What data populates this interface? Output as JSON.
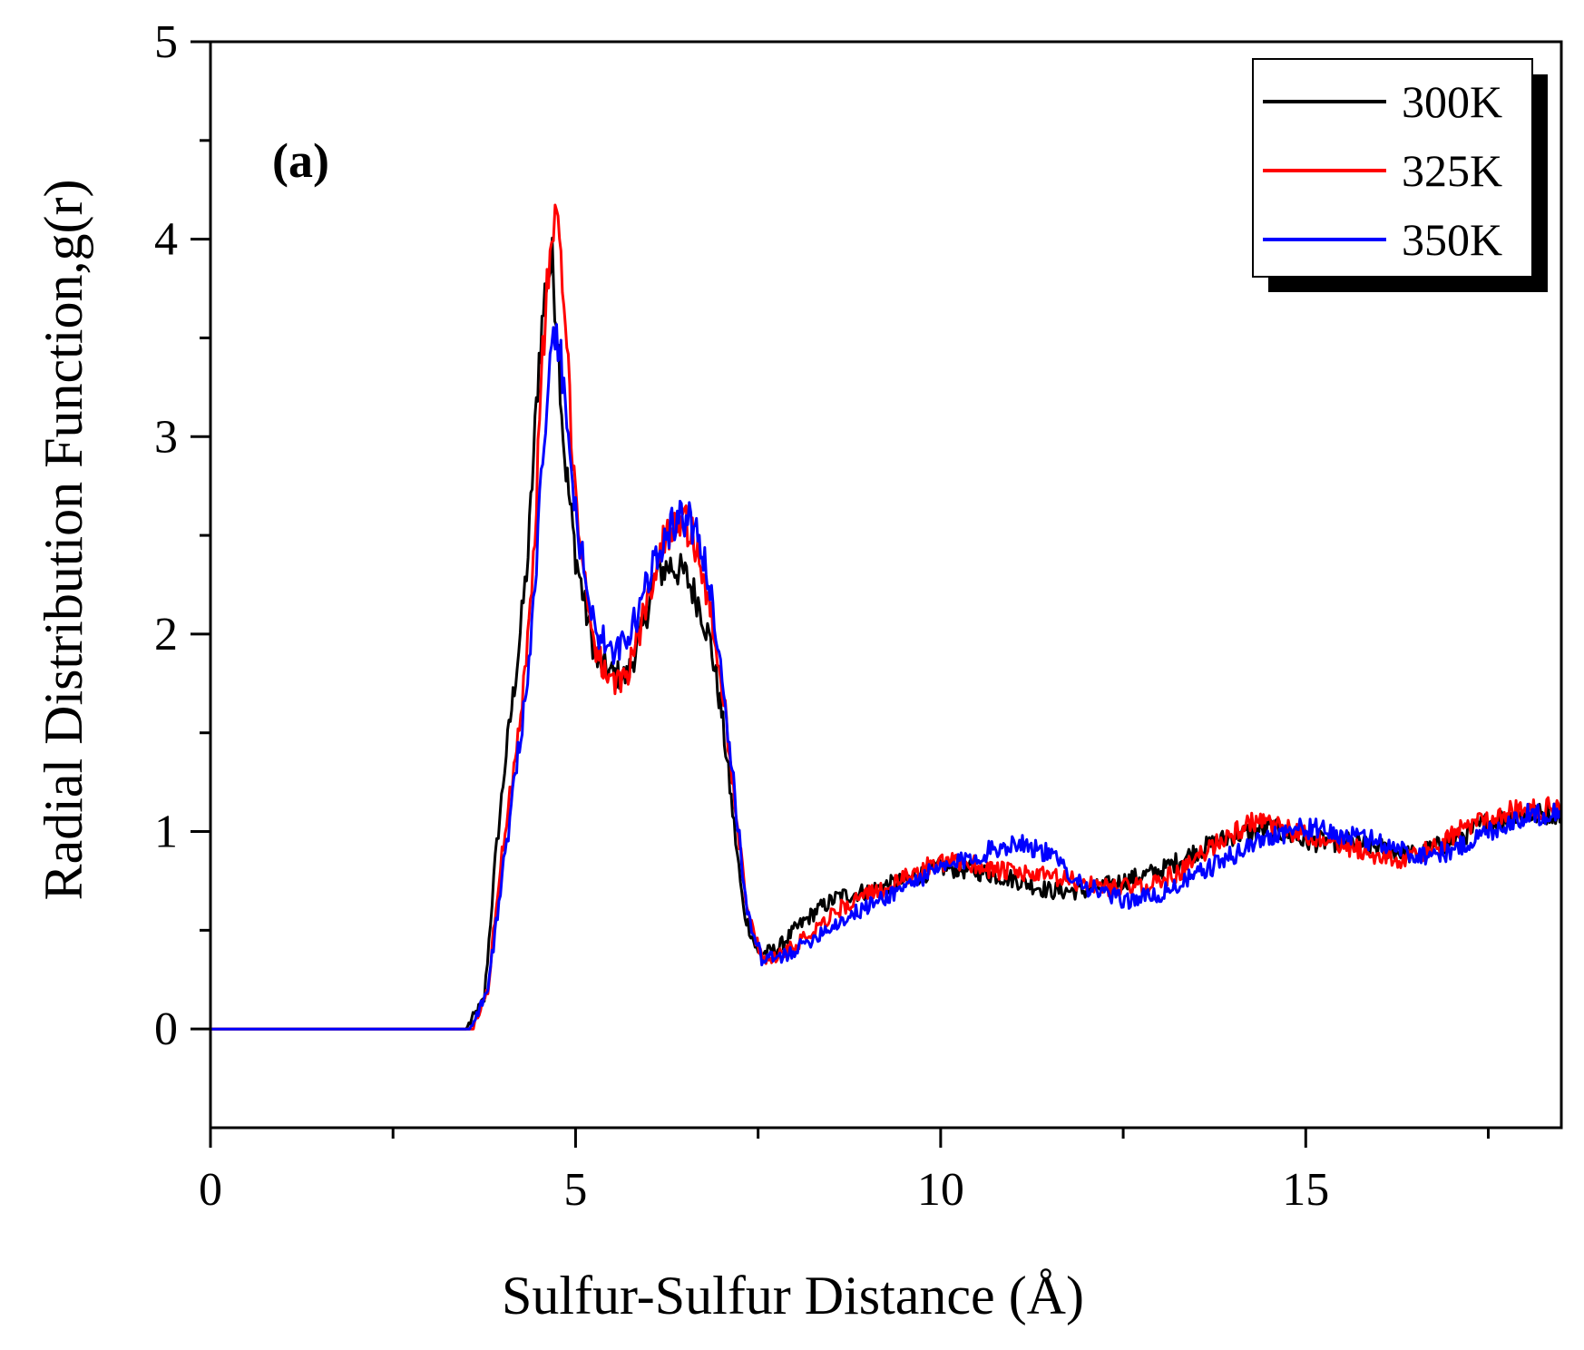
{
  "chart_data": {
    "type": "line",
    "title": "",
    "panel_label": "(a)",
    "xlabel": "Sulfur-Sulfur Distance (Å)",
    "ylabel": "Radial Distribution Function,g(r)",
    "xlim": [
      0,
      18.5
    ],
    "ylim": [
      -0.5,
      5
    ],
    "xticks": [
      0,
      5,
      10,
      15
    ],
    "yticks": [
      0,
      1,
      2,
      3,
      4,
      5
    ],
    "grid": false,
    "legend_position": "top-right",
    "series": [
      {
        "name": "300K",
        "color": "#000000",
        "x": [
          0,
          3.5,
          3.75,
          3.9,
          4.05,
          4.2,
          4.35,
          4.5,
          4.6,
          4.68,
          4.75,
          4.85,
          5.0,
          5.15,
          5.3,
          5.5,
          5.7,
          5.9,
          6.1,
          6.3,
          6.5,
          6.7,
          6.85,
          7.0,
          7.15,
          7.3,
          7.5,
          7.75,
          8.0,
          8.3,
          8.6,
          9.0,
          9.5,
          10.0,
          10.5,
          11.0,
          11.5,
          12.0,
          12.5,
          13.0,
          13.5,
          14.0,
          14.5,
          15.0,
          15.5,
          16.0,
          16.5,
          17.0,
          17.5,
          18.0,
          18.5
        ],
        "y": [
          0,
          0,
          0.15,
          0.85,
          1.4,
          1.85,
          2.4,
          3.4,
          3.8,
          3.88,
          3.55,
          2.9,
          2.4,
          2.1,
          1.85,
          1.8,
          1.78,
          2.0,
          2.3,
          2.35,
          2.3,
          2.15,
          1.95,
          1.6,
          1.1,
          0.6,
          0.38,
          0.4,
          0.5,
          0.6,
          0.67,
          0.7,
          0.75,
          0.82,
          0.8,
          0.76,
          0.7,
          0.7,
          0.75,
          0.8,
          0.9,
          0.98,
          1.02,
          0.95,
          0.95,
          0.92,
          0.88,
          0.95,
          1.05,
          1.08,
          1.1
        ]
      },
      {
        "name": "325K",
        "color": "#ff0000",
        "x": [
          0,
          3.6,
          3.8,
          3.95,
          4.1,
          4.25,
          4.4,
          4.55,
          4.65,
          4.72,
          4.8,
          4.9,
          5.0,
          5.15,
          5.3,
          5.5,
          5.7,
          5.9,
          6.1,
          6.3,
          6.45,
          6.6,
          6.75,
          6.9,
          7.05,
          7.2,
          7.35,
          7.55,
          7.8,
          8.1,
          8.4,
          8.8,
          9.3,
          9.8,
          10.3,
          10.8,
          11.3,
          11.8,
          12.3,
          12.8,
          13.3,
          13.8,
          14.3,
          14.8,
          15.3,
          15.8,
          16.3,
          16.8,
          17.3,
          17.8,
          18.5
        ],
        "y": [
          0,
          0,
          0.2,
          0.75,
          1.2,
          1.6,
          2.2,
          3.4,
          3.95,
          4.1,
          3.9,
          3.3,
          2.7,
          2.2,
          1.9,
          1.72,
          1.8,
          2.05,
          2.35,
          2.55,
          2.6,
          2.5,
          2.3,
          2.0,
          1.6,
          1.1,
          0.6,
          0.35,
          0.38,
          0.45,
          0.55,
          0.65,
          0.72,
          0.82,
          0.85,
          0.8,
          0.78,
          0.75,
          0.72,
          0.72,
          0.8,
          0.95,
          1.05,
          1.0,
          0.95,
          0.9,
          0.85,
          0.92,
          1.05,
          1.1,
          1.12
        ]
      },
      {
        "name": "350K",
        "color": "#0000ff",
        "x": [
          0,
          3.55,
          3.8,
          3.95,
          4.1,
          4.25,
          4.4,
          4.55,
          4.65,
          4.72,
          4.8,
          4.9,
          5.0,
          5.15,
          5.3,
          5.5,
          5.7,
          5.9,
          6.1,
          6.3,
          6.45,
          6.6,
          6.75,
          6.9,
          7.05,
          7.2,
          7.35,
          7.55,
          7.8,
          8.1,
          8.4,
          8.8,
          9.3,
          9.8,
          10.3,
          10.8,
          11.1,
          11.5,
          12.0,
          12.5,
          13.0,
          13.5,
          14.0,
          14.5,
          15.0,
          15.5,
          16.0,
          16.5,
          17.0,
          17.5,
          18.0,
          18.5
        ],
        "y": [
          0,
          0,
          0.2,
          0.65,
          1.05,
          1.5,
          2.0,
          2.9,
          3.35,
          3.5,
          3.4,
          3.0,
          2.6,
          2.25,
          2.0,
          1.9,
          1.95,
          2.15,
          2.4,
          2.55,
          2.6,
          2.55,
          2.4,
          2.1,
          1.65,
          1.1,
          0.6,
          0.35,
          0.36,
          0.42,
          0.5,
          0.58,
          0.68,
          0.78,
          0.85,
          0.92,
          0.95,
          0.88,
          0.72,
          0.65,
          0.68,
          0.78,
          0.88,
          0.98,
          1.02,
          0.98,
          0.95,
          0.88,
          0.9,
          1.0,
          1.08,
          1.1
        ]
      }
    ]
  }
}
